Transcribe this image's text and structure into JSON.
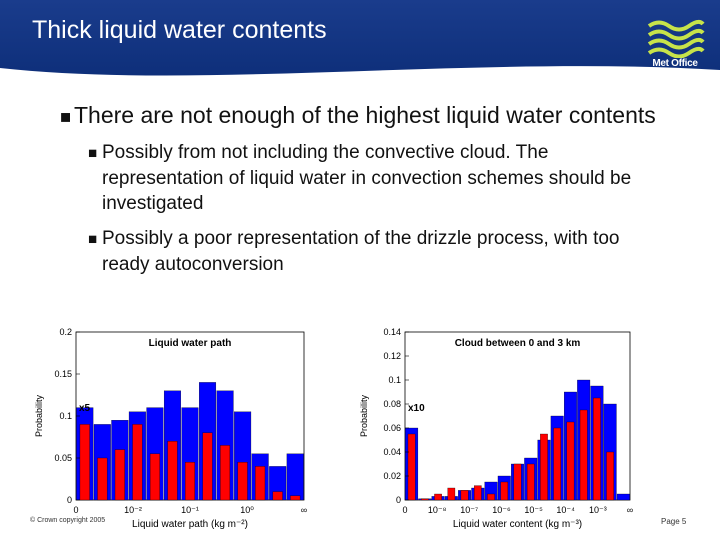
{
  "slide": {
    "title": "Thick liquid water contents",
    "logo_text": "Met Office",
    "bullets": {
      "main": "There are not enough of the highest liquid water contents",
      "sub": [
        "Possibly from not including the convective cloud. The representation of liquid water in convection schemes should be investigated",
        "Possibly a poor representation of the drizzle process, with too ready autoconversion"
      ]
    },
    "footer": {
      "copyright": "© Crown copyright 2005",
      "page": "Page 5"
    }
  },
  "colors": {
    "header": "#0e2f7a",
    "obs": "#0000ff",
    "model": "#ff0000"
  },
  "chart_data": [
    {
      "type": "bar",
      "title": "Liquid water path",
      "xlabel": "Liquid water path (kg m⁻²)",
      "ylabel": "Probability",
      "multiplier_label": "x5",
      "ylim": [
        0,
        0.2
      ],
      "y_ticks": [
        "0",
        "0.05",
        "0.1",
        "0.15",
        "0.2"
      ],
      "x_ticks": [
        "0",
        "10⁻²",
        "10⁻¹",
        "10⁰",
        "∞"
      ],
      "series": [
        {
          "values": [
            0.11,
            0.09,
            0.095,
            0.105,
            0.11,
            0.13,
            0.11,
            0.14,
            0.13,
            0.105,
            0.055,
            0.04,
            0.055
          ]
        },
        {
          "values": [
            0.09,
            0.05,
            0.06,
            0.09,
            0.055,
            0.07,
            0.045,
            0.08,
            0.065,
            0.045,
            0.04,
            0.01,
            0.005
          ]
        }
      ]
    },
    {
      "type": "bar",
      "title": "Cloud between 0 and 3 km",
      "xlabel": "Liquid water content (kg m⁻³)",
      "ylabel": "Probability",
      "multiplier_label": "x10",
      "ylim": [
        0,
        0.14
      ],
      "y_ticks": [
        "0",
        "0.02",
        "0.04",
        "0.06",
        "0.08",
        "0.1",
        "0.12",
        "0.14"
      ],
      "x_ticks": [
        "0",
        "10⁻⁸",
        "10⁻⁷",
        "10⁻⁶",
        "10⁻⁵",
        "10⁻⁴",
        "10⁻³",
        "∞"
      ],
      "series": [
        {
          "values": [
            0.06,
            0.001,
            0.003,
            0.003,
            0.008,
            0.01,
            0.015,
            0.02,
            0.03,
            0.035,
            0.05,
            0.07,
            0.09,
            0.1,
            0.095,
            0.08,
            0.005
          ]
        },
        {
          "values": [
            0.055,
            0.001,
            0.005,
            0.01,
            0.008,
            0.012,
            0.005,
            0.015,
            0.03,
            0.03,
            0.055,
            0.06,
            0.065,
            0.075,
            0.085,
            0.04,
            0.0
          ]
        }
      ]
    }
  ]
}
